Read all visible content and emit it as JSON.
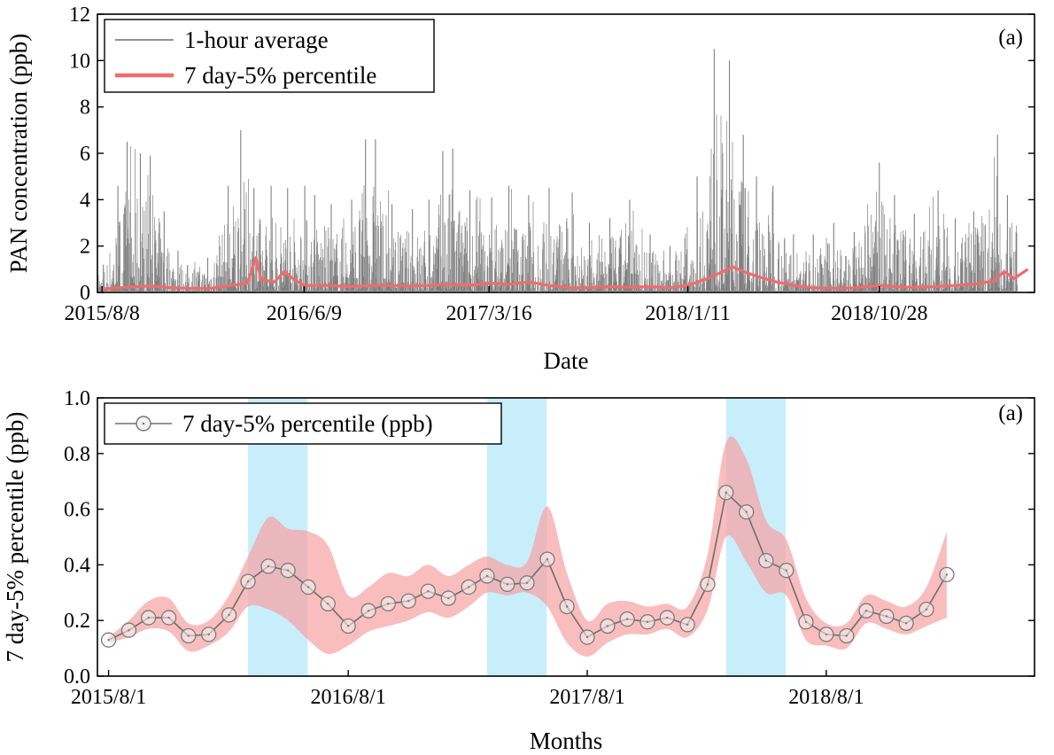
{
  "chart_data": [
    {
      "type": "line",
      "panel_tag": "(a)",
      "xlabel": "Date",
      "ylabel": "PAN concentration (ppb)",
      "x_axis_type": "date",
      "xlim": [
        "2015-08-01",
        "2019-06-20"
      ],
      "x_tick_labels": [
        "2015/8/8",
        "2016/6/9",
        "2017/3/16",
        "2018/1/11",
        "2018/10/28"
      ],
      "x_tick_dates": [
        "2015-08-08",
        "2016-06-09",
        "2017-03-16",
        "2018-01-11",
        "2018-10-28"
      ],
      "ylim": [
        0,
        12
      ],
      "y_ticks": [
        0,
        2,
        4,
        6,
        8,
        10,
        12
      ],
      "legend_position": "top-left",
      "series": [
        {
          "name": "1-hour average",
          "color": "#808080",
          "points": [
            [
              "2015-08-10",
              1.2
            ],
            [
              "2015-09-01",
              4.6
            ],
            [
              "2015-09-15",
              6.5
            ],
            [
              "2015-10-05",
              6.0
            ],
            [
              "2015-10-20",
              5.9
            ],
            [
              "2015-11-10",
              3.5
            ],
            [
              "2015-12-01",
              1.8
            ],
            [
              "2016-01-15",
              1.5
            ],
            [
              "2016-02-15",
              4.6
            ],
            [
              "2016-03-05",
              7.0
            ],
            [
              "2016-03-25",
              4.5
            ],
            [
              "2016-04-20",
              4.6
            ],
            [
              "2016-05-15",
              4.5
            ],
            [
              "2016-06-10",
              4.6
            ],
            [
              "2016-06-25",
              4.2
            ],
            [
              "2016-07-20",
              3.8
            ],
            [
              "2016-08-20",
              4.0
            ],
            [
              "2016-09-10",
              6.6
            ],
            [
              "2016-09-25",
              6.6
            ],
            [
              "2016-10-20",
              3.8
            ],
            [
              "2016-11-20",
              3.6
            ],
            [
              "2016-12-15",
              4.0
            ],
            [
              "2017-01-05",
              6.1
            ],
            [
              "2017-01-20",
              6.2
            ],
            [
              "2017-02-15",
              4.4
            ],
            [
              "2017-03-20",
              4.1
            ],
            [
              "2017-04-15",
              4.6
            ],
            [
              "2017-05-15",
              4.2
            ],
            [
              "2017-06-15",
              4.5
            ],
            [
              "2017-07-20",
              4.3
            ],
            [
              "2017-08-15",
              3.0
            ],
            [
              "2017-09-15",
              3.2
            ],
            [
              "2017-10-15",
              4.0
            ],
            [
              "2017-11-15",
              2.5
            ],
            [
              "2017-12-15",
              2.0
            ],
            [
              "2018-01-25",
              5.0
            ],
            [
              "2018-02-20",
              10.5
            ],
            [
              "2018-03-15",
              10.0
            ],
            [
              "2018-04-05",
              6.8
            ],
            [
              "2018-04-25",
              5.0
            ],
            [
              "2018-05-20",
              4.6
            ],
            [
              "2018-06-20",
              2.5
            ],
            [
              "2018-07-20",
              2.5
            ],
            [
              "2018-08-20",
              3.0
            ],
            [
              "2018-09-20",
              2.6
            ],
            [
              "2018-10-28",
              5.6
            ],
            [
              "2018-11-20",
              4.2
            ],
            [
              "2018-12-20",
              3.4
            ],
            [
              "2019-01-25",
              4.4
            ],
            [
              "2019-02-20",
              3.2
            ],
            [
              "2019-03-20",
              3.5
            ],
            [
              "2019-04-25",
              6.8
            ],
            [
              "2019-05-10",
              4.2
            ]
          ]
        },
        {
          "name": "7 day-5% percentile",
          "color": "#f26b6b",
          "points": [
            [
              "2015-08-08",
              0.15
            ],
            [
              "2015-09-15",
              0.22
            ],
            [
              "2015-10-20",
              0.28
            ],
            [
              "2015-11-20",
              0.2
            ],
            [
              "2015-12-20",
              0.18
            ],
            [
              "2016-01-20",
              0.18
            ],
            [
              "2016-02-20",
              0.3
            ],
            [
              "2016-03-15",
              0.4
            ],
            [
              "2016-03-28",
              1.5
            ],
            [
              "2016-04-05",
              0.55
            ],
            [
              "2016-04-25",
              0.45
            ],
            [
              "2016-05-10",
              0.9
            ],
            [
              "2016-05-25",
              0.55
            ],
            [
              "2016-06-09",
              0.3
            ],
            [
              "2016-07-15",
              0.3
            ],
            [
              "2016-08-15",
              0.25
            ],
            [
              "2016-09-15",
              0.3
            ],
            [
              "2016-10-15",
              0.3
            ],
            [
              "2016-11-15",
              0.28
            ],
            [
              "2016-12-15",
              0.3
            ],
            [
              "2017-01-15",
              0.35
            ],
            [
              "2017-02-15",
              0.3
            ],
            [
              "2017-03-16",
              0.4
            ],
            [
              "2017-04-15",
              0.35
            ],
            [
              "2017-05-15",
              0.45
            ],
            [
              "2017-06-15",
              0.3
            ],
            [
              "2017-07-15",
              0.2
            ],
            [
              "2017-08-15",
              0.2
            ],
            [
              "2017-09-15",
              0.25
            ],
            [
              "2017-10-15",
              0.22
            ],
            [
              "2017-11-15",
              0.25
            ],
            [
              "2017-12-15",
              0.2
            ],
            [
              "2018-01-11",
              0.3
            ],
            [
              "2018-02-10",
              0.6
            ],
            [
              "2018-03-01",
              0.85
            ],
            [
              "2018-03-20",
              1.1
            ],
            [
              "2018-04-10",
              0.85
            ],
            [
              "2018-05-01",
              0.65
            ],
            [
              "2018-05-25",
              0.45
            ],
            [
              "2018-06-20",
              0.3
            ],
            [
              "2018-07-20",
              0.2
            ],
            [
              "2018-08-20",
              0.18
            ],
            [
              "2018-09-20",
              0.2
            ],
            [
              "2018-10-28",
              0.3
            ],
            [
              "2018-11-20",
              0.25
            ],
            [
              "2018-12-20",
              0.22
            ],
            [
              "2019-01-20",
              0.25
            ],
            [
              "2019-02-20",
              0.3
            ],
            [
              "2019-03-20",
              0.35
            ],
            [
              "2019-04-20",
              0.5
            ],
            [
              "2019-05-05",
              0.9
            ],
            [
              "2019-05-20",
              0.6
            ],
            [
              "2019-06-10",
              1.0
            ]
          ]
        }
      ]
    },
    {
      "type": "line",
      "panel_tag": "(a)",
      "xlabel": "Months",
      "ylabel": "7 day-5% percentile (ppb)",
      "x_axis_type": "date",
      "xlim": [
        "2015-07-15",
        "2019-06-15"
      ],
      "x_tick_labels": [
        "2015/8/1",
        "2016/8/1",
        "2017/8/1",
        "2018/8/1"
      ],
      "x_tick_dates": [
        "2015-08-01",
        "2016-08-01",
        "2017-08-01",
        "2018-08-01"
      ],
      "ylim": [
        0,
        1.0
      ],
      "y_ticks": [
        0.0,
        0.2,
        0.4,
        0.6,
        0.8,
        1.0
      ],
      "legend_position": "top-left",
      "highlight_bands": [
        [
          "2016-03-01",
          "2016-05-31"
        ],
        [
          "2017-03-01",
          "2017-05-31"
        ],
        [
          "2018-03-01",
          "2018-05-31"
        ]
      ],
      "band_color": "#c8eefb",
      "band_fill_color": "#f7a3a3",
      "series": [
        {
          "name": "7 day-5% percentile (ppb)",
          "color": "#6e6e6e",
          "marker": "circle",
          "points": [
            [
              "2015-08-01",
              0.13
            ],
            [
              "2015-09-01",
              0.165
            ],
            [
              "2015-10-01",
              0.21
            ],
            [
              "2015-11-01",
              0.21
            ],
            [
              "2015-12-01",
              0.145
            ],
            [
              "2016-01-01",
              0.15
            ],
            [
              "2016-02-01",
              0.22
            ],
            [
              "2016-03-01",
              0.34
            ],
            [
              "2016-04-01",
              0.395
            ],
            [
              "2016-05-01",
              0.38
            ],
            [
              "2016-06-01",
              0.32
            ],
            [
              "2016-07-01",
              0.26
            ],
            [
              "2016-08-01",
              0.18
            ],
            [
              "2016-09-01",
              0.235
            ],
            [
              "2016-10-01",
              0.26
            ],
            [
              "2016-11-01",
              0.27
            ],
            [
              "2016-12-01",
              0.305
            ],
            [
              "2017-01-01",
              0.28
            ],
            [
              "2017-02-01",
              0.32
            ],
            [
              "2017-03-01",
              0.36
            ],
            [
              "2017-04-01",
              0.33
            ],
            [
              "2017-05-01",
              0.335
            ],
            [
              "2017-06-01",
              0.42
            ],
            [
              "2017-07-01",
              0.25
            ],
            [
              "2017-08-01",
              0.14
            ],
            [
              "2017-09-01",
              0.18
            ],
            [
              "2017-10-01",
              0.205
            ],
            [
              "2017-11-01",
              0.195
            ],
            [
              "2017-12-01",
              0.21
            ],
            [
              "2018-01-01",
              0.185
            ],
            [
              "2018-02-01",
              0.33
            ],
            [
              "2018-03-01",
              0.66
            ],
            [
              "2018-04-01",
              0.59
            ],
            [
              "2018-05-01",
              0.415
            ],
            [
              "2018-06-01",
              0.38
            ],
            [
              "2018-07-01",
              0.195
            ],
            [
              "2018-08-01",
              0.15
            ],
            [
              "2018-09-01",
              0.145
            ],
            [
              "2018-10-01",
              0.235
            ],
            [
              "2018-11-01",
              0.215
            ],
            [
              "2018-12-01",
              0.19
            ],
            [
              "2019-01-01",
              0.24
            ],
            [
              "2019-02-01",
              0.365
            ]
          ],
          "band_upper": [
            0.14,
            0.2,
            0.27,
            0.28,
            0.19,
            0.2,
            0.29,
            0.43,
            0.57,
            0.53,
            0.52,
            0.47,
            0.29,
            0.32,
            0.37,
            0.36,
            0.4,
            0.36,
            0.4,
            0.43,
            0.4,
            0.41,
            0.61,
            0.37,
            0.2,
            0.26,
            0.27,
            0.25,
            0.26,
            0.25,
            0.44,
            0.84,
            0.78,
            0.56,
            0.49,
            0.28,
            0.19,
            0.19,
            0.29,
            0.27,
            0.25,
            0.32,
            0.52
          ],
          "band_lower": [
            0.12,
            0.14,
            0.17,
            0.16,
            0.09,
            0.11,
            0.16,
            0.25,
            0.24,
            0.2,
            0.13,
            0.08,
            0.11,
            0.16,
            0.18,
            0.2,
            0.23,
            0.21,
            0.25,
            0.3,
            0.29,
            0.3,
            0.25,
            0.12,
            0.07,
            0.12,
            0.15,
            0.15,
            0.17,
            0.14,
            0.24,
            0.5,
            0.41,
            0.3,
            0.29,
            0.13,
            0.11,
            0.1,
            0.19,
            0.17,
            0.15,
            0.18,
            0.21
          ]
        }
      ]
    }
  ]
}
